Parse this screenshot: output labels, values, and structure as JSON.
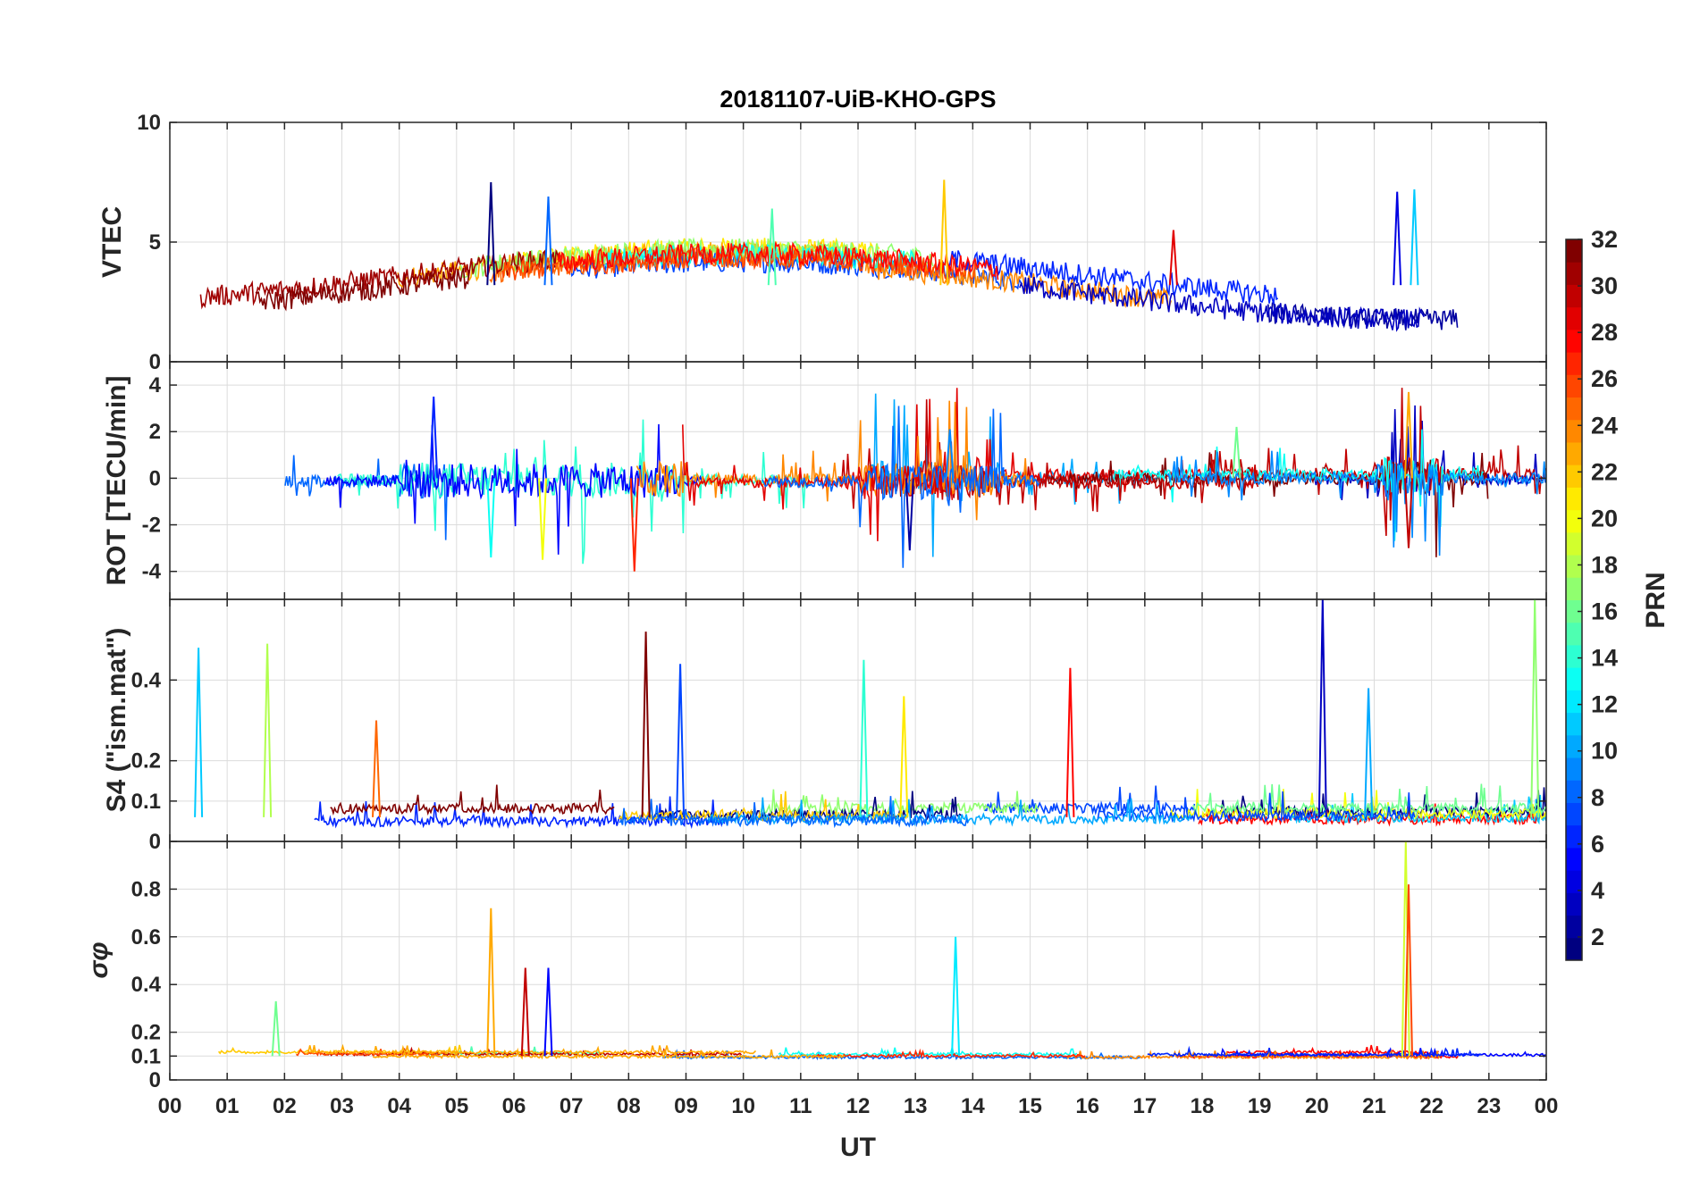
{
  "chart_data": {
    "type": "line",
    "title": "20181107-UiB-KHO-GPS",
    "xlabel": "UT",
    "x_range": [
      0,
      24
    ],
    "x_ticks": [
      "00",
      "01",
      "02",
      "03",
      "04",
      "05",
      "06",
      "07",
      "08",
      "09",
      "10",
      "11",
      "12",
      "13",
      "14",
      "15",
      "16",
      "17",
      "18",
      "19",
      "20",
      "21",
      "22",
      "23",
      "00"
    ],
    "colorbar": {
      "label": "PRN",
      "range": [
        1,
        32
      ],
      "ticks": [
        "2",
        "4",
        "6",
        "8",
        "10",
        "12",
        "14",
        "16",
        "18",
        "20",
        "22",
        "24",
        "26",
        "28",
        "30",
        "32"
      ],
      "colormap": "jet"
    },
    "panels": [
      {
        "name": "vtec",
        "ylabel": "VTEC",
        "ylim": [
          0,
          10
        ],
        "y_ticks": [
          "0",
          "5",
          "10"
        ],
        "y_tick_values": [
          0,
          5,
          10
        ],
        "baseline": 3.2,
        "noise": 0.45,
        "events": [
          [
            5.6,
            7.5
          ],
          [
            6.6,
            6.9
          ],
          [
            10.5,
            6.4
          ],
          [
            13.5,
            7.6
          ],
          [
            17.5,
            5.5
          ],
          [
            21.4,
            7.1
          ],
          [
            21.7,
            7.2
          ]
        ]
      },
      {
        "name": "rot",
        "ylabel": "ROT [TECU/min]",
        "ylim": [
          -5.2,
          5
        ],
        "y_ticks": [
          "-4",
          "-2",
          "0",
          "2",
          "4"
        ],
        "y_tick_values": [
          -4,
          -2,
          0,
          2,
          4
        ],
        "baseline": 0,
        "noise": 0.25,
        "events": [
          [
            4.6,
            3.5
          ],
          [
            5.6,
            -3.4
          ],
          [
            6.5,
            -3.5
          ],
          [
            8.1,
            -4.0
          ],
          [
            12.9,
            -3.1
          ],
          [
            13.6,
            2.1
          ],
          [
            18.6,
            2.2
          ],
          [
            21.6,
            3.7
          ],
          [
            21.6,
            -3.0
          ]
        ]
      },
      {
        "name": "s4",
        "ylabel": "S4 (\"ism.mat\")",
        "ylim": [
          0,
          0.6
        ],
        "y_ticks": [
          "0",
          "0.1",
          "0.2",
          "0.4"
        ],
        "y_tick_values": [
          0,
          0.1,
          0.2,
          0.4
        ],
        "baseline": 0.06,
        "noise": 0.025,
        "events": [
          [
            0.5,
            0.48
          ],
          [
            1.7,
            0.49
          ],
          [
            3.6,
            0.3
          ],
          [
            8.3,
            0.52
          ],
          [
            8.9,
            0.44
          ],
          [
            12.1,
            0.45
          ],
          [
            12.8,
            0.36
          ],
          [
            15.7,
            0.43
          ],
          [
            20.1,
            0.6
          ],
          [
            20.9,
            0.38
          ],
          [
            23.8,
            0.6
          ]
        ]
      },
      {
        "name": "sigma_phi",
        "ylabel": "σφ",
        "ylim": [
          0,
          1
        ],
        "y_ticks": [
          "0",
          "0.1",
          "0.2",
          "0.4",
          "0.6",
          "0.8"
        ],
        "y_tick_values": [
          0,
          0.1,
          0.2,
          0.4,
          0.6,
          0.8
        ],
        "baseline": 0.1,
        "noise": 0.012,
        "events": [
          [
            1.85,
            0.33
          ],
          [
            5.6,
            0.72
          ],
          [
            6.2,
            0.47
          ],
          [
            6.6,
            0.47
          ],
          [
            13.7,
            0.6
          ],
          [
            21.55,
            1.0
          ],
          [
            21.6,
            0.82
          ]
        ]
      }
    ]
  }
}
